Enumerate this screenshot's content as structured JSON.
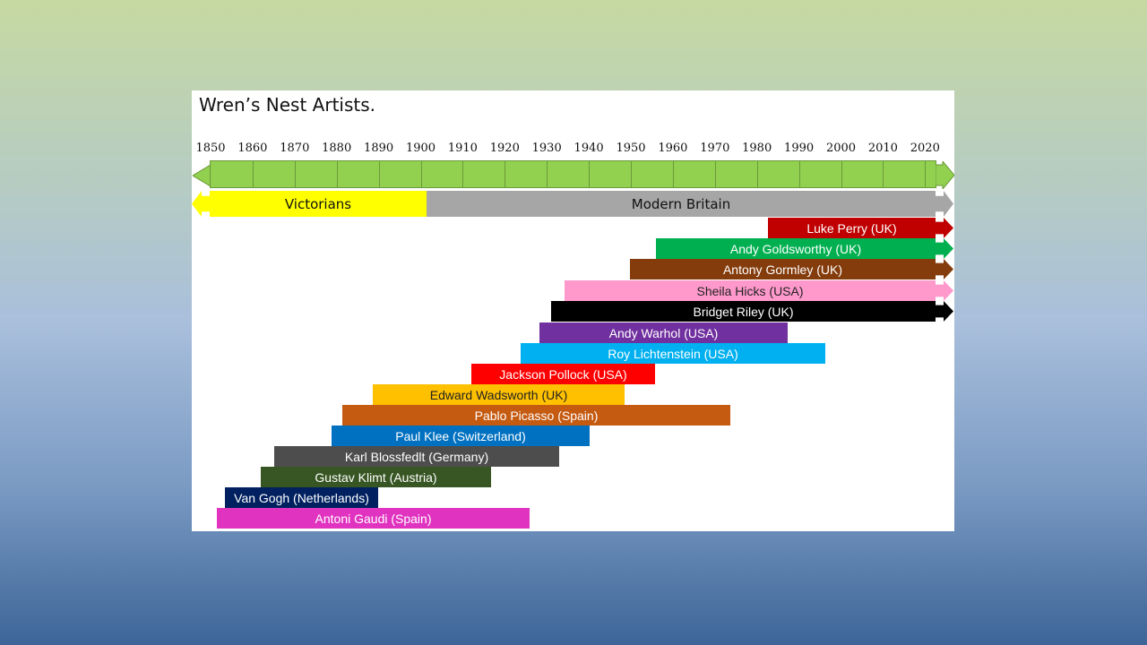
{
  "title": "Wren’s Nest Artists.",
  "ticks": [
    "1850",
    "1860",
    "1870",
    "1880",
    "1890",
    "1900",
    "1910",
    "1920",
    "1930",
    "1940",
    "1950",
    "1960",
    "1970",
    "1980",
    "1990",
    "2000",
    "2010",
    "2020"
  ],
  "eras": [
    {
      "label": "Victorians",
      "color": "#ffff00"
    },
    {
      "label": "Modern Britain",
      "color": "#a6a6a6"
    }
  ],
  "artists": [
    {
      "label": "Luke Perry (UK)",
      "color": "#c00000",
      "dark_text": false
    },
    {
      "label": "Andy Goldsworthy (UK)",
      "color": "#00b050",
      "dark_text": false
    },
    {
      "label": "Antony Gormley (UK)",
      "color": "#843c0c",
      "dark_text": false
    },
    {
      "label": "Sheila Hicks (USA)",
      "color": "#ff99cc",
      "dark_text": true
    },
    {
      "label": "Bridget Riley (UK)",
      "color": "#000000",
      "dark_text": false
    },
    {
      "label": "Andy Warhol (USA)",
      "color": "#7030a0",
      "dark_text": false
    },
    {
      "label": "Roy Lichtenstein (USA)",
      "color": "#00b0f0",
      "dark_text": false
    },
    {
      "label": "Jackson Pollock (USA)",
      "color": "#ff0000",
      "dark_text": false
    },
    {
      "label": "Edward Wadsworth (UK)",
      "color": "#ffc000",
      "dark_text": true
    },
    {
      "label": "Pablo Picasso (Spain)",
      "color": "#c55a11",
      "dark_text": false
    },
    {
      "label": "Paul Klee (Switzerland)",
      "color": "#0070c0",
      "dark_text": false
    },
    {
      "label": "Karl Blossfedlt (Germany)",
      "color": "#4d4d4d",
      "dark_text": false
    },
    {
      "label": "Gustav Klimt (Austria)",
      "color": "#375623",
      "dark_text": false
    },
    {
      "label": "Van Gogh (Netherlands)",
      "color": "#002060",
      "dark_text": false
    },
    {
      "label": "Antoni Gaudi (Spain)",
      "color": "#e033c0",
      "dark_text": false
    }
  ],
  "colors": {
    "ruler": "#92d050"
  }
}
